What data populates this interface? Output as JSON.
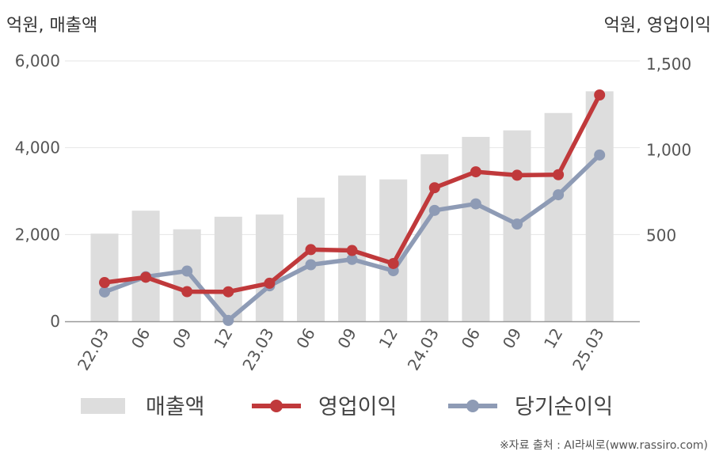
{
  "units": {
    "left": "억원, 매출액",
    "right": "억원, 영업이익"
  },
  "source": "※자료 출처 : AI라씨로(www.rassiro.com)",
  "chart_data": {
    "type": "bar",
    "categories": [
      "22.03",
      "06",
      "09",
      "12",
      "23.03",
      "06",
      "09",
      "12",
      "24.03",
      "06",
      "09",
      "12",
      "25.03"
    ],
    "ylim_left": [
      0,
      6000
    ],
    "yticks_left": [
      0,
      2000,
      4000,
      6000
    ],
    "ytick_labels_left": [
      "0",
      "2,000",
      "4,000",
      "6,000"
    ],
    "ylim_right": [
      0,
      1500
    ],
    "yticks_right": [
      500,
      1000,
      1500
    ],
    "ytick_labels_right": [
      "500",
      "1,000",
      "1,500"
    ],
    "grid": true,
    "legend_position": "bottom",
    "series": [
      {
        "name": "매출액",
        "type": "bar",
        "axis": "left",
        "color": "#dddddd",
        "values": [
          2020,
          2550,
          2120,
          2410,
          2460,
          2850,
          3360,
          3270,
          3850,
          4250,
          4400,
          4800,
          5300
        ]
      },
      {
        "name": "영업이익",
        "type": "line",
        "axis": "right",
        "color": "#c0393b",
        "values": [
          226,
          257,
          173,
          172,
          222,
          418,
          413,
          337,
          779,
          872,
          852,
          855,
          1320
        ]
      },
      {
        "name": "당기순이익",
        "type": "line",
        "axis": "right",
        "color": "#8e9bb5",
        "values": [
          171,
          260,
          293,
          5,
          207,
          330,
          361,
          295,
          647,
          685,
          567,
          738,
          970
        ]
      }
    ]
  }
}
